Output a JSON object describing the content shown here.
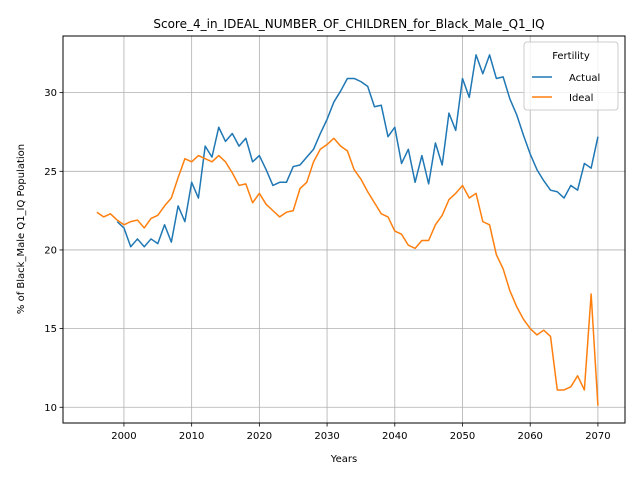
{
  "chart_data": {
    "type": "line",
    "title": "Score_4_in_IDEAL_NUMBER_OF_CHILDREN_for_Black_Male_Q1_IQ",
    "xlabel": "Years",
    "ylabel": "% of Black_Male Q1_IQ Population",
    "xlim": [
      1991,
      2074
    ],
    "ylim": [
      9.0,
      33.6
    ],
    "xticks": [
      2000,
      2010,
      2020,
      2030,
      2040,
      2050,
      2060,
      2070
    ],
    "yticks": [
      10,
      15,
      20,
      25,
      30
    ],
    "grid": true,
    "legend": {
      "title": "Fertility",
      "placement": "top-right"
    },
    "series": [
      {
        "name": "Actual",
        "color": "#1f77b4",
        "x": [
          1999,
          2000,
          2001,
          2002,
          2003,
          2004,
          2005,
          2006,
          2007,
          2008,
          2009,
          2010,
          2011,
          2012,
          2013,
          2014,
          2015,
          2016,
          2017,
          2018,
          2019,
          2020,
          2021,
          2022,
          2023,
          2024,
          2025,
          2026,
          2027,
          2028,
          2029,
          2030,
          2031,
          2032,
          2033,
          2034,
          2035,
          2036,
          2037,
          2038,
          2039,
          2040,
          2041,
          2042,
          2043,
          2044,
          2045,
          2046,
          2047,
          2048,
          2049,
          2050,
          2051,
          2052,
          2053,
          2054,
          2055,
          2056,
          2057,
          2058,
          2059,
          2060,
          2061,
          2062,
          2063,
          2064,
          2065,
          2066,
          2067,
          2068,
          2069,
          2070
        ],
        "values": [
          21.8,
          21.4,
          20.2,
          20.7,
          20.2,
          20.7,
          20.4,
          21.6,
          20.5,
          22.8,
          21.8,
          24.3,
          23.3,
          26.6,
          25.9,
          27.8,
          26.9,
          27.4,
          26.6,
          27.1,
          25.6,
          26.0,
          25.1,
          24.1,
          24.3,
          24.3,
          25.3,
          25.4,
          25.9,
          26.4,
          27.4,
          28.3,
          29.4,
          30.1,
          30.9,
          30.9,
          30.7,
          30.4,
          29.1,
          29.2,
          27.2,
          27.8,
          25.5,
          26.4,
          24.3,
          26.0,
          24.2,
          26.8,
          25.4,
          28.7,
          27.6,
          30.9,
          29.7,
          32.4,
          31.2,
          32.4,
          30.9,
          31.0,
          29.6,
          28.6,
          27.3,
          26.1,
          25.1,
          24.4,
          23.8,
          23.7,
          23.3,
          24.1,
          23.8,
          25.5,
          25.2,
          27.2
        ]
      },
      {
        "name": "Ideal",
        "color": "#ff7f0e",
        "x": [
          1996,
          1997,
          1998,
          1999,
          2000,
          2001,
          2002,
          2003,
          2004,
          2005,
          2006,
          2007,
          2008,
          2009,
          2010,
          2011,
          2012,
          2013,
          2014,
          2015,
          2016,
          2017,
          2018,
          2019,
          2020,
          2021,
          2022,
          2023,
          2024,
          2025,
          2026,
          2027,
          2028,
          2029,
          2030,
          2031,
          2032,
          2033,
          2034,
          2035,
          2036,
          2037,
          2038,
          2039,
          2040,
          2041,
          2042,
          2043,
          2044,
          2045,
          2046,
          2047,
          2048,
          2049,
          2050,
          2051,
          2052,
          2053,
          2054,
          2055,
          2056,
          2057,
          2058,
          2059,
          2060,
          2061,
          2062,
          2063,
          2064,
          2065,
          2066,
          2067,
          2068,
          2069,
          2070
        ],
        "values": [
          22.4,
          22.1,
          22.3,
          21.9,
          21.6,
          21.8,
          21.9,
          21.4,
          22.0,
          22.2,
          22.8,
          23.3,
          24.6,
          25.8,
          25.6,
          26.0,
          25.8,
          25.6,
          26.0,
          25.6,
          24.9,
          24.1,
          24.2,
          23.0,
          23.6,
          22.9,
          22.5,
          22.1,
          22.4,
          22.5,
          23.9,
          24.3,
          25.6,
          26.4,
          26.7,
          27.1,
          26.6,
          26.3,
          25.1,
          24.5,
          23.7,
          23.0,
          22.3,
          22.1,
          21.2,
          21.0,
          20.3,
          20.1,
          20.6,
          20.6,
          21.6,
          22.2,
          23.2,
          23.6,
          24.1,
          23.3,
          23.6,
          21.8,
          21.6,
          19.7,
          18.8,
          17.4,
          16.4,
          15.6,
          15.0,
          14.6,
          14.9,
          14.5,
          11.1,
          11.1,
          11.3,
          12.0,
          11.1,
          17.2,
          10.1
        ]
      }
    ]
  }
}
